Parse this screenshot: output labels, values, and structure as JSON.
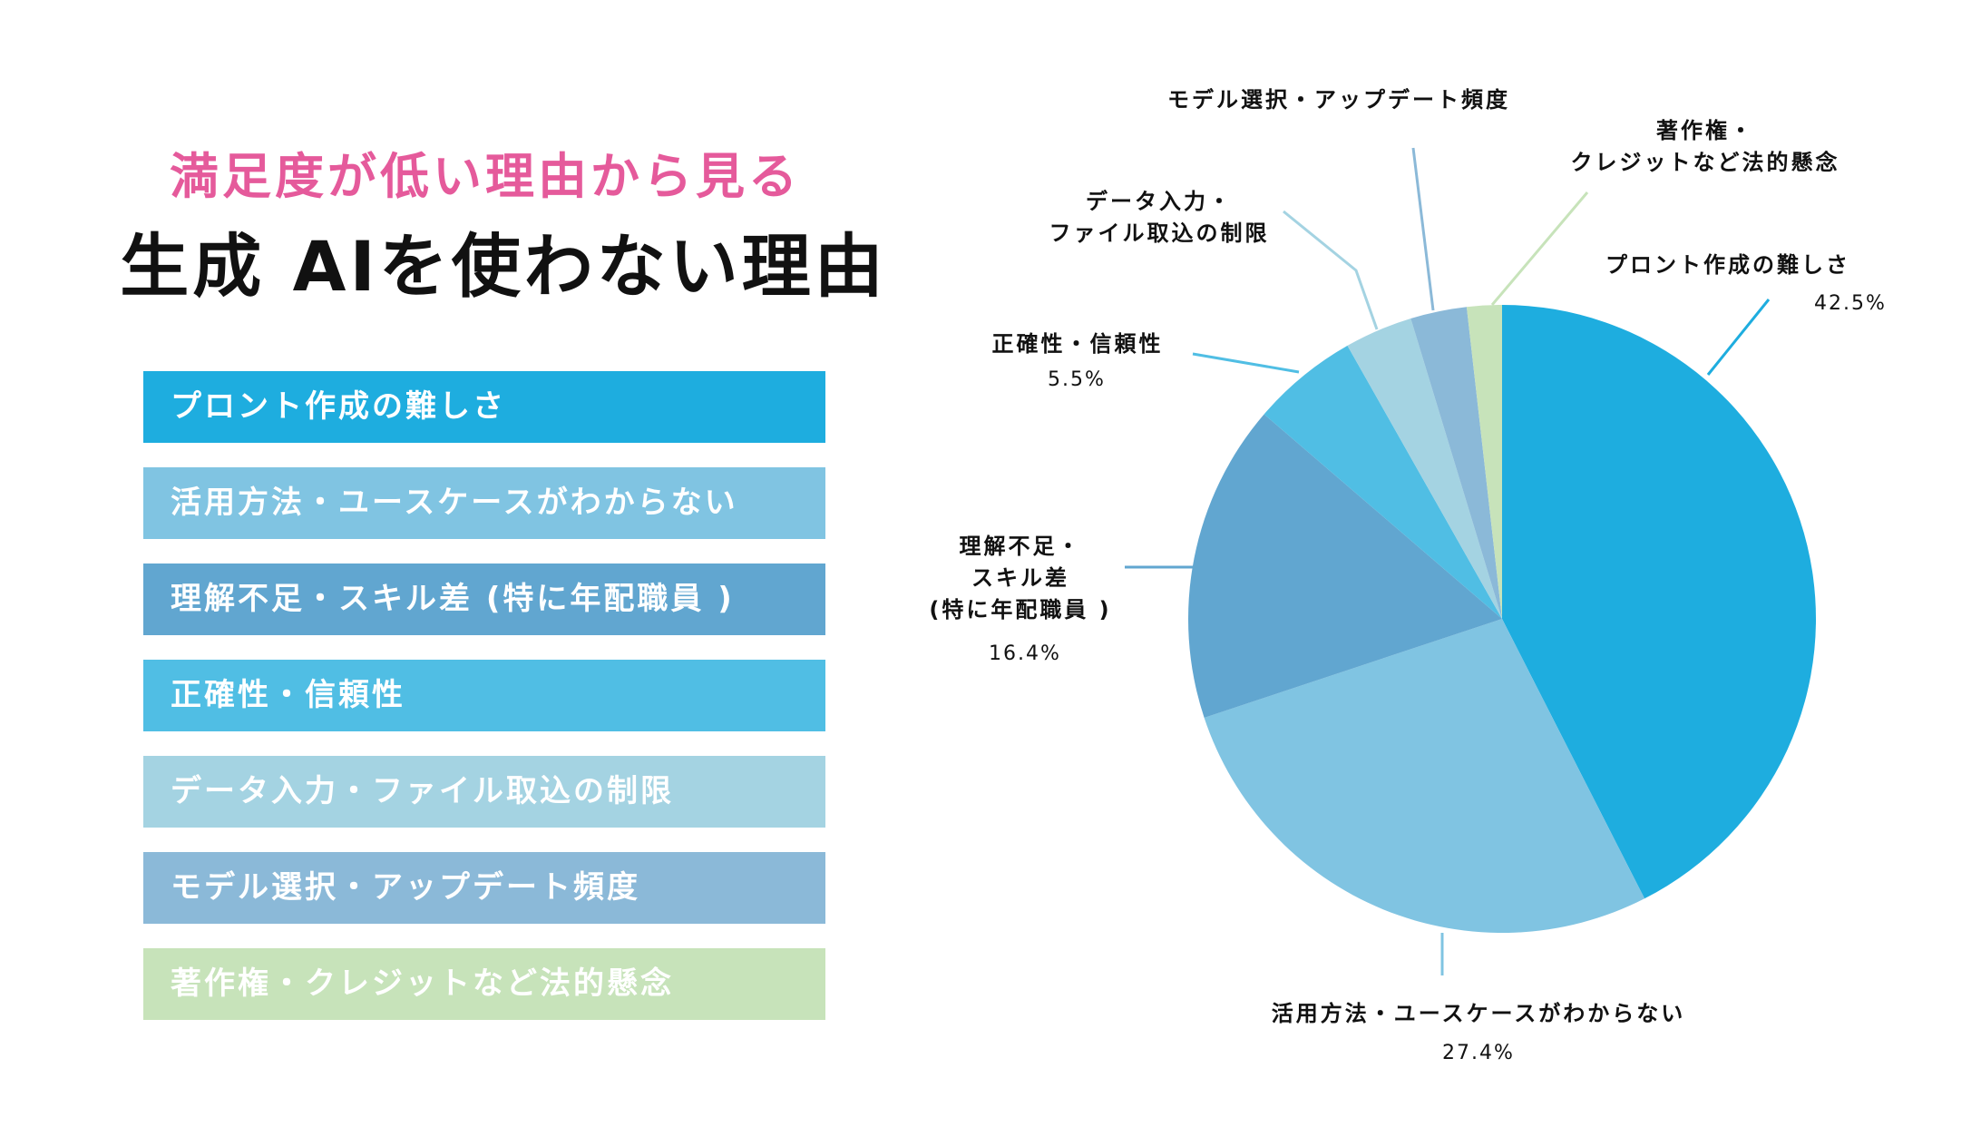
{
  "header": {
    "subtitle": "満足度が低い理由から見る",
    "title": "生成 AIを使わない理由",
    "subtitle_color": "#e55a9b"
  },
  "chart_data": {
    "type": "pie",
    "start": "12 o'clock, clockwise",
    "categories": [
      "プロント作成の難しさ",
      "活用方法・ユースケースがわからない",
      "理解不足・スキル差（特に年配職員）",
      "正確性・信頼性",
      "データ入力・ファイル取込の制限",
      "モデル選択・アップデート頻度",
      "著作権・クレジットなど法的懸念"
    ],
    "values": [
      42.5,
      27.4,
      16.4,
      5.5,
      3.5,
      2.9,
      1.8
    ],
    "colors": [
      "#1eaddf",
      "#80c4e2",
      "#61a6d0",
      "#50bee4",
      "#a4d3e2",
      "#8bb9d8",
      "#c7e3ba"
    ],
    "slice_labels": [
      {
        "text": [
          "プロント作成の難しさ"
        ],
        "pct": "42.5%"
      },
      {
        "text": [
          "活用方法・ユースケースがわからない"
        ],
        "pct": "27.4%"
      },
      {
        "text": [
          "理解不足・",
          "スキル差",
          "(特に年配職員 )"
        ],
        "pct": "16.4%"
      },
      {
        "text": [
          "正確性・信頼性"
        ],
        "pct": "5.5%"
      },
      {
        "text": [
          "データ入力・",
          "ファイル取込の制限"
        ]
      },
      {
        "text": [
          "モデル選択・アップデート頻度"
        ]
      },
      {
        "text": [
          "著作権・",
          "クレジットなど法的懸念"
        ]
      }
    ],
    "legend": [
      "プロント作成の難しさ",
      "活用方法・ユースケースがわからない",
      "理解不足・スキル差 (特に年配職員 )",
      "正確性・信頼性",
      "データ入力・ファイル取込の制限",
      "モデル選択・アップデート頻度",
      "著作権・クレジットなど法的懸念"
    ],
    "legend_placement": "left"
  }
}
